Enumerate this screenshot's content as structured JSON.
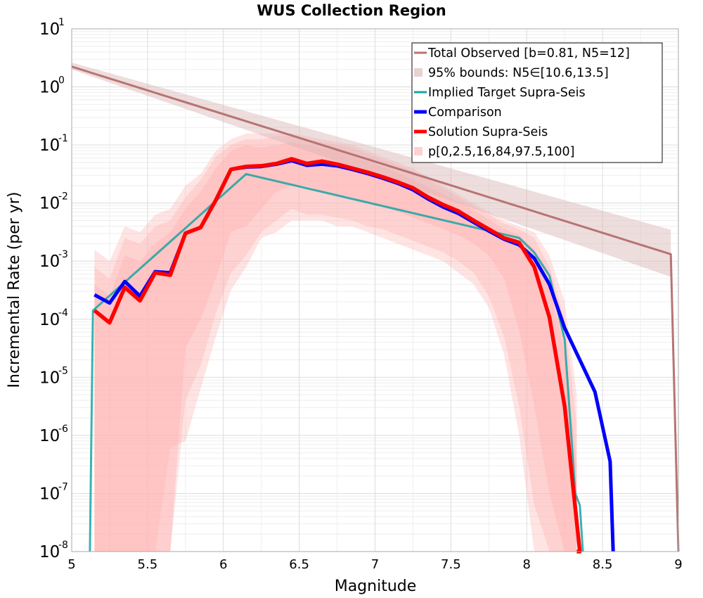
{
  "chart_data": {
    "type": "line",
    "title": "WUS Collection Region",
    "xlabel": "Magnitude",
    "ylabel": "Incremental Rate (per yr)",
    "xlim": [
      5,
      9
    ],
    "ylim_log10": [
      -8,
      1
    ],
    "y_scale": "log",
    "grid": true,
    "legend_position": "top-right",
    "x_ticks": [
      "5",
      "5.5",
      "6",
      "6.5",
      "7",
      "7.5",
      "8",
      "8.5",
      "9"
    ],
    "y_ticks": [
      {
        "base": "10",
        "exp": "1"
      },
      {
        "base": "10",
        "exp": "0"
      },
      {
        "base": "10",
        "exp": "-1"
      },
      {
        "base": "10",
        "exp": "-2"
      },
      {
        "base": "10",
        "exp": "-3"
      },
      {
        "base": "10",
        "exp": "-4"
      },
      {
        "base": "10",
        "exp": "-5"
      },
      {
        "base": "10",
        "exp": "-6"
      },
      {
        "base": "10",
        "exp": "-7"
      },
      {
        "base": "10",
        "exp": "-8"
      }
    ],
    "x": [
      5.15,
      5.25,
      5.35,
      5.45,
      5.55,
      5.65,
      5.75,
      5.85,
      5.95,
      6.05,
      6.15,
      6.25,
      6.35,
      6.45,
      6.55,
      6.65,
      6.75,
      6.85,
      6.95,
      7.05,
      7.15,
      7.25,
      7.35,
      7.45,
      7.55,
      7.65,
      7.75,
      7.85,
      7.95,
      8.05,
      8.15,
      8.25,
      8.35,
      8.45,
      8.55
    ],
    "series": [
      {
        "name": "Total Observed [b=0.81, N5=12]",
        "color": "#b87373",
        "style": "line",
        "x": [
          5.0,
          8.95,
          8.95,
          9.0
        ],
        "log10_values": [
          0.35,
          -2.88,
          -2.88,
          -8.2
        ]
      },
      {
        "name": "95% bounds: N5∈[10.6,13.5]",
        "color": "#d9b3b3",
        "style": "band",
        "x": [
          5.0,
          8.95
        ],
        "log10_lower": [
          0.3,
          -3.27
        ],
        "log10_upper": [
          0.42,
          -2.46
        ]
      },
      {
        "name": "Implied Target Supra-Seis",
        "color": "#1aa3a3",
        "style": "line",
        "x": [
          5.12,
          5.14,
          6.15,
          7.95,
          8.05,
          8.15,
          8.25,
          8.32,
          8.35,
          8.37
        ],
        "log10_values": [
          -8.2,
          -3.85,
          -1.5,
          -2.6,
          -2.85,
          -3.25,
          -4.35,
          -7.0,
          -7.2,
          -8.2
        ]
      },
      {
        "name": "Comparison",
        "color": "#0000ff",
        "style": "line",
        "log10_values": [
          -3.58,
          -3.72,
          -3.35,
          -3.6,
          -3.18,
          -3.2,
          -2.52,
          -2.42,
          -1.95,
          -1.42,
          -1.38,
          -1.37,
          -1.33,
          -1.27,
          -1.35,
          -1.33,
          -1.36,
          -1.42,
          -1.49,
          -1.57,
          -1.66,
          -1.77,
          -1.93,
          -2.07,
          -2.18,
          -2.33,
          -2.48,
          -2.62,
          -2.72,
          -2.95,
          -3.4,
          -4.15,
          -4.7,
          -5.25,
          -6.45
        ],
        "tail": {
          "x": 8.57,
          "log10_value": -8.2
        }
      },
      {
        "name": "Solution Supra-Seis",
        "color": "#ff0000",
        "style": "line",
        "log10_values": [
          -3.85,
          -4.06,
          -3.45,
          -3.68,
          -3.2,
          -3.24,
          -2.52,
          -2.42,
          -1.95,
          -1.42,
          -1.37,
          -1.36,
          -1.32,
          -1.24,
          -1.32,
          -1.28,
          -1.33,
          -1.4,
          -1.47,
          -1.55,
          -1.64,
          -1.74,
          -1.9,
          -2.03,
          -2.14,
          -2.3,
          -2.45,
          -2.6,
          -2.68,
          -3.1,
          -3.97,
          -5.5,
          -8.2
        ],
        "tail": {
          "x": 8.33,
          "log10_value": -8.2
        }
      },
      {
        "name": "p[0,2.5,16,84,97.5,100]",
        "color": "#ffb3b3",
        "style": "percentile-bands",
        "x": [
          5.15,
          5.25,
          5.35,
          5.45,
          5.55,
          5.65,
          5.75,
          5.85,
          5.95,
          6.05,
          6.15,
          6.25,
          6.35,
          6.45,
          6.55,
          6.65,
          6.75,
          6.85,
          6.95,
          7.05,
          7.15,
          7.25,
          7.35,
          7.45,
          7.55,
          7.65,
          7.75,
          7.85,
          7.95,
          8.05,
          8.15,
          8.25,
          8.33
        ],
        "p0": [
          -8.2,
          -8.2,
          -8.2,
          -8.2,
          -8.2,
          -6.2,
          -6.1,
          -5.2,
          -4.3,
          -3.5,
          -3.1,
          -2.6,
          -2.5,
          -2.3,
          -2.3,
          -2.3,
          -2.4,
          -2.4,
          -2.5,
          -2.6,
          -2.7,
          -2.8,
          -2.9,
          -3.0,
          -3.2,
          -3.4,
          -3.8,
          -4.6,
          -6.0,
          -8.2,
          -8.2,
          -8.2,
          -8.2
        ],
        "p2_5": [
          -8.2,
          -8.2,
          -8.2,
          -8.2,
          -8.2,
          -8.2,
          -5.4,
          -4.8,
          -3.9,
          -3.2,
          -2.9,
          -2.5,
          -2.3,
          -2.1,
          -2.2,
          -2.2,
          -2.25,
          -2.3,
          -2.4,
          -2.45,
          -2.55,
          -2.65,
          -2.75,
          -2.85,
          -3.0,
          -3.2,
          -3.6,
          -4.3,
          -5.5,
          -7.2,
          -8.2,
          -8.2,
          -8.2
        ],
        "p16": [
          -8.2,
          -8.2,
          -8.2,
          -8.2,
          -8.2,
          -8.2,
          -4.5,
          -4.0,
          -3.3,
          -2.5,
          -2.4,
          -2.1,
          -1.8,
          -1.7,
          -1.7,
          -1.8,
          -1.85,
          -1.9,
          -2.0,
          -2.05,
          -2.15,
          -2.25,
          -2.35,
          -2.45,
          -2.55,
          -2.7,
          -2.9,
          -3.3,
          -4.2,
          -5.5,
          -7.0,
          -8.2,
          -8.2
        ],
        "p84": [
          -3.4,
          -3.6,
          -2.9,
          -3.0,
          -2.7,
          -2.5,
          -2.1,
          -1.8,
          -1.4,
          -1.1,
          -1.0,
          -1.05,
          -1.0,
          -0.95,
          -1.0,
          -1.05,
          -1.1,
          -1.2,
          -1.28,
          -1.38,
          -1.48,
          -1.6,
          -1.72,
          -1.85,
          -1.98,
          -2.12,
          -2.28,
          -2.45,
          -2.55,
          -2.8,
          -3.4,
          -4.6,
          -6.5
        ],
        "p97_5": [
          -3.1,
          -3.3,
          -2.6,
          -2.7,
          -2.4,
          -2.3,
          -1.9,
          -1.6,
          -1.2,
          -1.0,
          -0.9,
          -0.9,
          -0.85,
          -0.85,
          -0.9,
          -0.95,
          -1.0,
          -1.05,
          -1.15,
          -1.25,
          -1.35,
          -1.45,
          -1.6,
          -1.75,
          -1.9,
          -2.05,
          -2.2,
          -2.35,
          -2.45,
          -2.6,
          -3.1,
          -4.0,
          -5.8
        ],
        "p100": [
          -2.8,
          -3.0,
          -2.4,
          -2.5,
          -2.2,
          -2.1,
          -1.7,
          -1.5,
          -1.1,
          -0.9,
          -0.8,
          -0.8,
          -0.8,
          -0.8,
          -0.85,
          -0.9,
          -0.95,
          -1.0,
          -1.1,
          -1.2,
          -1.3,
          -1.4,
          -1.55,
          -1.7,
          -1.85,
          -2.0,
          -2.15,
          -2.3,
          -2.4,
          -2.5,
          -2.9,
          -3.7,
          -5.3
        ]
      }
    ]
  }
}
